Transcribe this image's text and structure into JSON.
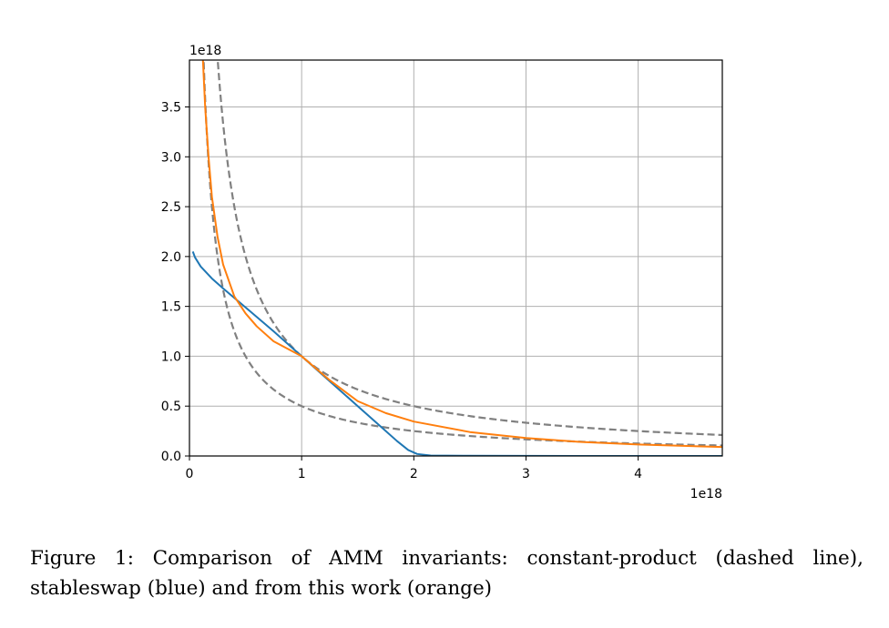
{
  "chart_data": {
    "type": "line",
    "title": "",
    "xlabel": "",
    "ylabel": "",
    "x_multiplier": "1e18",
    "y_multiplier": "1e18",
    "xlim": [
      0,
      4.75
    ],
    "ylim": [
      0,
      3.97
    ],
    "x_ticks": [
      0,
      1,
      2,
      3,
      4
    ],
    "x_tick_labels": [
      "0",
      "1",
      "2",
      "3",
      "4"
    ],
    "y_ticks": [
      0,
      0.5,
      1.0,
      1.5,
      2.0,
      2.5,
      3.0,
      3.5
    ],
    "y_tick_labels": [
      "0.0",
      "0.5",
      "1.0",
      "1.5",
      "2.0",
      "2.5",
      "3.0",
      "3.5"
    ],
    "grid": true,
    "series": [
      {
        "name": "constant-product (k=0.5)",
        "style": "dashed",
        "color": "#808080",
        "formula": "y = 0.5 / x",
        "points": [
          [
            0.125,
            4.0
          ],
          [
            0.25,
            2.0
          ],
          [
            0.5,
            1.0
          ],
          [
            1.0,
            0.5
          ],
          [
            2.0,
            0.25
          ],
          [
            3.0,
            0.167
          ],
          [
            4.0,
            0.125
          ],
          [
            4.75,
            0.105
          ]
        ]
      },
      {
        "name": "constant-product (k=1)",
        "style": "dashed",
        "color": "#808080",
        "formula": "y = 1 / x",
        "points": [
          [
            0.25,
            4.0
          ],
          [
            0.5,
            2.0
          ],
          [
            1.0,
            1.0
          ],
          [
            2.0,
            0.5
          ],
          [
            3.0,
            0.333
          ],
          [
            4.0,
            0.25
          ],
          [
            4.75,
            0.21
          ]
        ]
      },
      {
        "name": "stableswap",
        "style": "solid",
        "color": "#1f77b4",
        "points": [
          [
            0.03,
            2.05
          ],
          [
            0.05,
            1.99
          ],
          [
            0.1,
            1.9
          ],
          [
            0.2,
            1.78
          ],
          [
            0.3,
            1.68
          ],
          [
            0.5,
            1.49
          ],
          [
            0.75,
            1.25
          ],
          [
            1.0,
            1.0
          ],
          [
            1.25,
            0.75
          ],
          [
            1.5,
            0.5
          ],
          [
            1.7,
            0.3
          ],
          [
            1.85,
            0.15
          ],
          [
            1.95,
            0.06
          ],
          [
            2.03,
            0.02
          ],
          [
            2.15,
            0.005
          ],
          [
            2.5,
            0.002
          ],
          [
            3.0,
            0.001
          ],
          [
            4.0,
            0.0
          ],
          [
            4.75,
            0.0
          ]
        ]
      },
      {
        "name": "this work",
        "style": "solid",
        "color": "#ff7f0e",
        "points": [
          [
            0.12,
            3.97
          ],
          [
            0.14,
            3.5
          ],
          [
            0.17,
            3.0
          ],
          [
            0.2,
            2.6
          ],
          [
            0.25,
            2.2
          ],
          [
            0.3,
            1.92
          ],
          [
            0.4,
            1.6
          ],
          [
            0.5,
            1.43
          ],
          [
            0.6,
            1.3
          ],
          [
            0.75,
            1.15
          ],
          [
            1.0,
            1.0
          ],
          [
            1.25,
            0.76
          ],
          [
            1.5,
            0.55
          ],
          [
            1.75,
            0.43
          ],
          [
            2.0,
            0.345
          ],
          [
            2.5,
            0.24
          ],
          [
            3.0,
            0.18
          ],
          [
            3.5,
            0.14
          ],
          [
            4.0,
            0.115
          ],
          [
            4.75,
            0.09
          ]
        ]
      }
    ]
  },
  "caption": {
    "text": "Figure 1: Comparison of AMM invariants: constant-product (dashed line), stableswap (blue) and from this work (orange)"
  }
}
